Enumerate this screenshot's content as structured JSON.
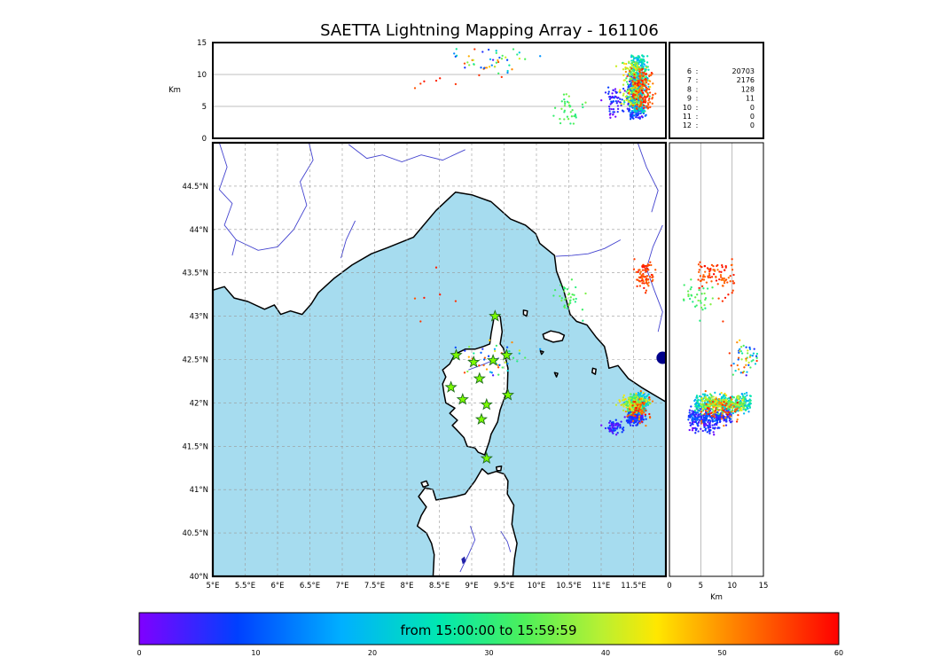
{
  "title": "SAETTA Lightning Mapping Array - 161106",
  "panels": {
    "alt_axis": {
      "label": "Km",
      "ticks": [
        0,
        5,
        10,
        15
      ],
      "max": 15,
      "gridlines": [
        5,
        10
      ]
    },
    "map": {
      "lon_min": 5,
      "lon_max": 12,
      "lat_min": 40,
      "lat_max": 45,
      "lon_tick_values": [
        5,
        5.5,
        6,
        6.5,
        7,
        7.5,
        8,
        8.5,
        9,
        9.5,
        10,
        10.5,
        11,
        11.5
      ],
      "lon_tick_labels": [
        "5°E",
        "5.5°E",
        "6°E",
        "6.5°E",
        "7°E",
        "7.5°E",
        "8°E",
        "8.5°E",
        "9°E",
        "9.5°E",
        "10°E",
        "10.5°E",
        "11°E",
        "11.5°E"
      ],
      "lat_tick_values": [
        40,
        40.5,
        41,
        41.5,
        42,
        42.5,
        43,
        43.5,
        44,
        44.5
      ],
      "lat_tick_labels": [
        "40°N",
        "40.5°N",
        "41°N",
        "41.5°N",
        "42°N",
        "42.5°N",
        "43°N",
        "43.5°N",
        "44°N",
        "44.5°N"
      ]
    }
  },
  "stats": {
    "rows": [
      {
        "label": "6",
        "value": "20703",
        "color": "#000000"
      },
      {
        "label": "7",
        "value": "2176",
        "color": "#ff2020"
      },
      {
        "label": "8",
        "value": "128",
        "color": "#000000"
      },
      {
        "label": "9",
        "value": "11",
        "color": "#000000"
      },
      {
        "label": "10",
        "value": "0",
        "color": "#000000"
      },
      {
        "label": "11",
        "value": "0",
        "color": "#000000"
      },
      {
        "label": "12",
        "value": "0",
        "color": "#000000"
      }
    ]
  },
  "colorbar": {
    "label": "from 15:00:00 to 15:59:59",
    "min": 0,
    "max": 60,
    "tick_values": [
      0,
      10,
      20,
      30,
      40,
      50,
      60
    ],
    "stops": [
      [
        0.0,
        "#8000ff"
      ],
      [
        0.14,
        "#0040ff"
      ],
      [
        0.29,
        "#00b0ff"
      ],
      [
        0.43,
        "#00e8b0"
      ],
      [
        0.55,
        "#4df05a"
      ],
      [
        0.66,
        "#b8f032"
      ],
      [
        0.74,
        "#ffe700"
      ],
      [
        0.84,
        "#ff8c00"
      ],
      [
        1.0,
        "#ff0000"
      ]
    ]
  },
  "colors": {
    "sea": "#a6dcef",
    "land": "#ffffff",
    "coast": "#000000",
    "river": "#4343cf",
    "lake": "#2222a8",
    "grid": "#999999",
    "panel_grid": "#aaaaaa",
    "station_fill": "#7CFC00",
    "station_stroke": "#1f6b1f",
    "marker": "#00008b",
    "frame": "#000000"
  },
  "chart_data": {
    "type": "scatter",
    "title": "SAETTA Lightning Mapping Array - 161106",
    "time_window": {
      "from": "15:00:00",
      "to": "15:59:59",
      "unit_axis_minutes": [
        0,
        60
      ]
    },
    "axes": {
      "lon_deg_E": [
        5,
        12
      ],
      "lat_deg_N": [
        40,
        45
      ],
      "alt_km": [
        0,
        15
      ]
    },
    "views": [
      "altitude-vs-longitude",
      "map-lon-lat",
      "altitude-vs-latitude"
    ],
    "sources_by_min_station_count": {
      "6": 20703,
      "7": 2176,
      "8": 128,
      "9": 11,
      "10": 0,
      "11": 0,
      "12": 0
    },
    "stations_lonlat": [
      [
        9.36,
        43.0
      ],
      [
        8.76,
        42.55
      ],
      [
        9.03,
        42.47
      ],
      [
        9.33,
        42.49
      ],
      [
        9.54,
        42.55
      ],
      [
        9.12,
        42.28
      ],
      [
        8.68,
        42.18
      ],
      [
        8.86,
        42.04
      ],
      [
        9.23,
        41.98
      ],
      [
        9.56,
        42.09
      ],
      [
        9.15,
        41.81
      ],
      [
        9.23,
        41.36
      ]
    ],
    "city_marker_lonlat": [
      11.95,
      42.52
    ],
    "clusters": [
      {
        "name": "tyrrhenian-storm-early-west",
        "lon": 11.2,
        "lat": 41.72,
        "lon_std": 0.06,
        "lat_std": 0.04,
        "alt_km": [
          3,
          8
        ],
        "t": [
          0.0,
          0.15
        ],
        "n": 60
      },
      {
        "name": "tyrrhenian-storm-early",
        "lon": 11.52,
        "lat": 41.84,
        "lon_std": 0.06,
        "lat_std": 0.045,
        "alt_km": [
          3,
          10
        ],
        "t": [
          0.02,
          0.22
        ],
        "n": 260
      },
      {
        "name": "tyrrhenian-storm-mid",
        "lon": 11.58,
        "lat": 42.0,
        "lon_std": 0.07,
        "lat_std": 0.05,
        "alt_km": [
          4,
          13
        ],
        "t": [
          0.25,
          0.5
        ],
        "n": 320
      },
      {
        "name": "tyrrhenian-storm-late",
        "lon": 11.5,
        "lat": 41.99,
        "lon_std": 0.09,
        "lat_std": 0.05,
        "alt_km": [
          5,
          12
        ],
        "t": [
          0.5,
          0.78
        ],
        "n": 200
      },
      {
        "name": "tyrrhenian-storm-end",
        "lon": 11.58,
        "lat": 41.93,
        "lon_std": 0.09,
        "lat_std": 0.07,
        "alt_km": [
          5,
          11
        ],
        "t": [
          0.82,
          1.0
        ],
        "n": 70
      },
      {
        "name": "tuscany-storm-late-red",
        "lon": 11.66,
        "lat": 43.47,
        "lon_std": 0.07,
        "lat_std": 0.07,
        "alt_km": [
          4.5,
          10.5
        ],
        "t": [
          0.86,
          1.0
        ],
        "n": 80
      },
      {
        "name": "ligurian-sea-weak-teal",
        "lon": 10.48,
        "lat": 43.2,
        "lon_std": 0.11,
        "lat_std": 0.09,
        "alt_km": [
          2,
          7
        ],
        "t": [
          0.48,
          0.62
        ],
        "n": 35
      },
      {
        "name": "corsica-high-scatter",
        "lon": 9.35,
        "lat": 42.5,
        "lon_std": 0.3,
        "lat_std": 0.1,
        "alt_km": [
          9.5,
          14
        ],
        "t": [
          0.05,
          0.95
        ],
        "n": 50
      },
      {
        "name": "stray-late-red",
        "lon": 8.6,
        "lat": 43.2,
        "lon_std": 0.45,
        "lat_std": 0.25,
        "alt_km": [
          7,
          9.5
        ],
        "t": [
          0.9,
          1.0
        ],
        "n": 6
      }
    ]
  },
  "geo": {
    "land": {
      "mainland": [
        [
          5.0,
          43.3
        ],
        [
          5.18,
          43.34
        ],
        [
          5.33,
          43.21
        ],
        [
          5.54,
          43.17
        ],
        [
          5.8,
          43.08
        ],
        [
          5.95,
          43.13
        ],
        [
          6.05,
          43.02
        ],
        [
          6.2,
          43.06
        ],
        [
          6.38,
          43.02
        ],
        [
          6.52,
          43.14
        ],
        [
          6.63,
          43.27
        ],
        [
          6.88,
          43.44
        ],
        [
          7.15,
          43.59
        ],
        [
          7.45,
          43.72
        ],
        [
          7.7,
          43.79
        ],
        [
          8.1,
          43.91
        ],
        [
          8.45,
          44.22
        ],
        [
          8.75,
          44.43
        ],
        [
          9.0,
          44.4
        ],
        [
          9.3,
          44.32
        ],
        [
          9.6,
          44.12
        ],
        [
          9.83,
          44.05
        ],
        [
          9.99,
          43.95
        ],
        [
          10.05,
          43.84
        ],
        [
          10.28,
          43.7
        ],
        [
          10.31,
          43.52
        ],
        [
          10.42,
          43.3
        ],
        [
          10.52,
          43.02
        ],
        [
          10.62,
          42.94
        ],
        [
          10.78,
          42.9
        ],
        [
          10.92,
          42.76
        ],
        [
          11.05,
          42.65
        ],
        [
          11.09,
          42.53
        ],
        [
          11.12,
          42.4
        ],
        [
          11.26,
          42.43
        ],
        [
          11.42,
          42.28
        ],
        [
          11.62,
          42.18
        ],
        [
          11.8,
          42.1
        ],
        [
          12.05,
          41.99
        ],
        [
          12.05,
          45.05
        ],
        [
          4.95,
          45.05
        ]
      ],
      "corsica": [
        [
          9.35,
          43.01
        ],
        [
          9.44,
          43.0
        ],
        [
          9.47,
          42.82
        ],
        [
          9.44,
          42.68
        ],
        [
          9.49,
          42.63
        ],
        [
          9.56,
          42.4
        ],
        [
          9.55,
          42.15
        ],
        [
          9.44,
          41.92
        ],
        [
          9.4,
          41.78
        ],
        [
          9.3,
          41.64
        ],
        [
          9.27,
          41.55
        ],
        [
          9.2,
          41.4
        ],
        [
          9.1,
          41.43
        ],
        [
          9.05,
          41.48
        ],
        [
          8.93,
          41.5
        ],
        [
          8.88,
          41.6
        ],
        [
          8.78,
          41.68
        ],
        [
          8.7,
          41.74
        ],
        [
          8.78,
          41.8
        ],
        [
          8.66,
          41.88
        ],
        [
          8.74,
          41.94
        ],
        [
          8.6,
          42.0
        ],
        [
          8.57,
          42.12
        ],
        [
          8.55,
          42.22
        ],
        [
          8.6,
          42.3
        ],
        [
          8.55,
          42.38
        ],
        [
          8.66,
          42.45
        ],
        [
          8.74,
          42.56
        ],
        [
          8.9,
          42.62
        ],
        [
          9.05,
          42.62
        ],
        [
          9.18,
          42.65
        ],
        [
          9.28,
          42.68
        ],
        [
          9.3,
          42.8
        ],
        [
          9.33,
          42.92
        ]
      ],
      "sardinia": [
        [
          8.4,
          39.95
        ],
        [
          8.42,
          40.25
        ],
        [
          8.38,
          40.38
        ],
        [
          8.3,
          40.5
        ],
        [
          8.16,
          40.58
        ],
        [
          8.22,
          40.7
        ],
        [
          8.3,
          40.8
        ],
        [
          8.18,
          40.92
        ],
        [
          8.28,
          41.02
        ],
        [
          8.4,
          41.0
        ],
        [
          8.45,
          40.88
        ],
        [
          8.6,
          40.9
        ],
        [
          8.75,
          40.92
        ],
        [
          8.9,
          40.95
        ],
        [
          9.05,
          41.1
        ],
        [
          9.16,
          41.24
        ],
        [
          9.25,
          41.18
        ],
        [
          9.38,
          41.21
        ],
        [
          9.5,
          41.18
        ],
        [
          9.56,
          41.1
        ],
        [
          9.55,
          40.95
        ],
        [
          9.65,
          40.82
        ],
        [
          9.62,
          40.6
        ],
        [
          9.7,
          40.38
        ],
        [
          9.66,
          40.2
        ],
        [
          9.63,
          39.95
        ]
      ],
      "elba": [
        [
          10.1,
          42.79
        ],
        [
          10.22,
          42.83
        ],
        [
          10.35,
          42.81
        ],
        [
          10.43,
          42.78
        ],
        [
          10.4,
          42.72
        ],
        [
          10.26,
          42.7
        ],
        [
          10.12,
          42.74
        ]
      ],
      "capraia": [
        [
          9.8,
          43.07
        ],
        [
          9.86,
          43.06
        ],
        [
          9.85,
          43.0
        ],
        [
          9.8,
          43.02
        ]
      ],
      "giglio": [
        [
          10.87,
          42.4
        ],
        [
          10.92,
          42.39
        ],
        [
          10.91,
          42.33
        ],
        [
          10.86,
          42.35
        ]
      ],
      "montecristo": [
        [
          10.28,
          42.35
        ],
        [
          10.33,
          42.34
        ],
        [
          10.31,
          42.3
        ]
      ],
      "pianosa": [
        [
          10.06,
          42.6
        ],
        [
          10.11,
          42.59
        ],
        [
          10.08,
          42.56
        ]
      ],
      "asinara": [
        [
          8.22,
          41.08
        ],
        [
          8.3,
          41.1
        ],
        [
          8.33,
          41.05
        ],
        [
          8.25,
          41.03
        ]
      ],
      "maddalena": [
        [
          9.38,
          41.26
        ],
        [
          9.46,
          41.27
        ],
        [
          9.45,
          41.22
        ],
        [
          9.39,
          41.22
        ]
      ]
    },
    "rivers": [
      [
        [
          5.08,
          45.05
        ],
        [
          5.22,
          44.72
        ],
        [
          5.1,
          44.46
        ],
        [
          5.3,
          44.3
        ],
        [
          5.18,
          44.05
        ],
        [
          5.36,
          43.88
        ],
        [
          5.3,
          43.7
        ]
      ],
      [
        [
          5.36,
          43.88
        ],
        [
          5.7,
          43.76
        ],
        [
          6.0,
          43.8
        ],
        [
          6.25,
          44.0
        ],
        [
          6.45,
          44.28
        ],
        [
          6.35,
          44.55
        ],
        [
          6.55,
          44.8
        ],
        [
          6.48,
          45.02
        ]
      ],
      [
        [
          7.1,
          44.98
        ],
        [
          7.38,
          44.82
        ],
        [
          7.62,
          44.86
        ],
        [
          7.92,
          44.78
        ],
        [
          8.22,
          44.86
        ],
        [
          8.55,
          44.8
        ],
        [
          8.9,
          44.92
        ]
      ],
      [
        [
          7.2,
          44.1
        ],
        [
          7.06,
          43.88
        ],
        [
          6.98,
          43.67
        ]
      ],
      [
        [
          11.3,
          43.88
        ],
        [
          11.05,
          43.78
        ],
        [
          10.8,
          43.72
        ],
        [
          10.55,
          43.7
        ],
        [
          10.3,
          43.69
        ]
      ],
      [
        [
          11.95,
          44.05
        ],
        [
          11.8,
          43.8
        ],
        [
          11.7,
          43.55
        ],
        [
          11.82,
          43.3
        ],
        [
          11.95,
          43.05
        ],
        [
          11.88,
          42.82
        ]
      ],
      [
        [
          11.55,
          45.03
        ],
        [
          11.7,
          44.72
        ],
        [
          11.88,
          44.45
        ],
        [
          11.78,
          44.2
        ]
      ],
      [
        [
          8.82,
          40.05
        ],
        [
          8.95,
          40.25
        ],
        [
          9.05,
          40.42
        ],
        [
          8.98,
          40.58
        ]
      ],
      [
        [
          9.45,
          40.52
        ],
        [
          9.55,
          40.4
        ],
        [
          9.6,
          40.28
        ]
      ],
      [
        [
          8.95,
          42.38
        ],
        [
          9.2,
          42.45
        ],
        [
          9.42,
          42.52
        ]
      ]
    ],
    "lakes": [
      [
        [
          8.84,
          40.2
        ],
        [
          8.89,
          40.23
        ],
        [
          8.91,
          40.17
        ],
        [
          8.86,
          40.14
        ]
      ]
    ]
  }
}
